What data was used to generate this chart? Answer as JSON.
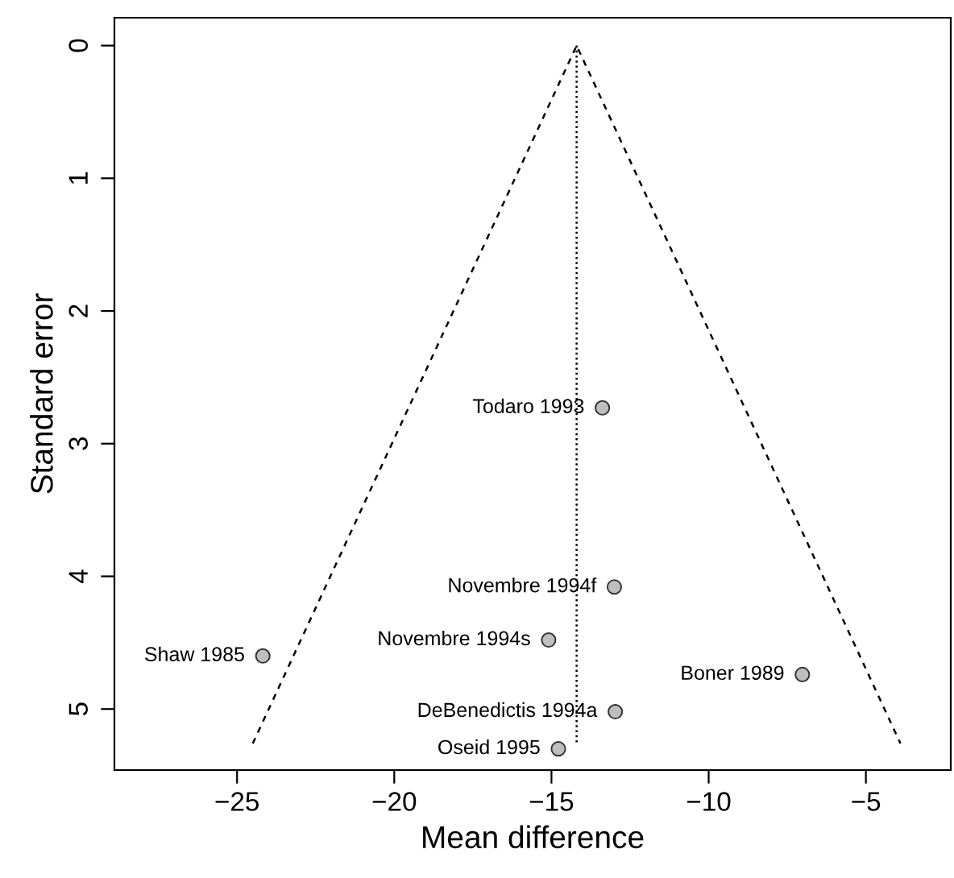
{
  "chart_data": {
    "type": "scatter",
    "xlabel": "Mean difference",
    "ylabel": "Standard error",
    "xlim": [
      -28.9,
      -2.3
    ],
    "xticks": [
      {
        "value": -25,
        "label": "−25"
      },
      {
        "value": -20,
        "label": "−20"
      },
      {
        "value": -15,
        "label": "−15"
      },
      {
        "value": -10,
        "label": "−10"
      },
      {
        "value": -5,
        "label": "−5"
      }
    ],
    "ylim": [
      5.46,
      -0.21
    ],
    "yticks": [
      0,
      1,
      2,
      3,
      4,
      5
    ],
    "grid": false,
    "series": [
      {
        "color": "#bebebe",
        "marker": "circle",
        "x": [
          -13.38,
          -13.0,
          -15.09,
          -7.02,
          -12.97,
          -14.78,
          -24.18
        ],
        "values": [
          2.73,
          4.08,
          4.48,
          4.74,
          5.02,
          5.3,
          4.6
        ]
      },
      {
        "type": "line",
        "color": "#000000",
        "marker": "none",
        "line_style": "dashed",
        "x": [
          -24.5,
          -14.2,
          -3.9
        ],
        "values": [
          5.26,
          0,
          5.26
        ]
      },
      {
        "type": "line",
        "color": "#000000",
        "marker": "none",
        "line_style": "dotted",
        "x": [
          -14.2,
          -14.2
        ],
        "values": [
          0,
          5.26
        ]
      }
    ],
    "annotations": [
      {
        "text": "Todaro 1993",
        "x": -13.38,
        "y": 2.73
      },
      {
        "text": "Novembre 1994f",
        "x": -13.0,
        "y": 4.08
      },
      {
        "text": "Novembre 1994s",
        "x": -15.09,
        "y": 4.48
      },
      {
        "text": "Boner 1989",
        "x": -7.02,
        "y": 4.74
      },
      {
        "text": "DeBenedictis 1994a",
        "x": -12.97,
        "y": 5.02
      },
      {
        "text": "Oseid 1995",
        "x": -14.78,
        "y": 5.3
      },
      {
        "text": "Shaw 1985",
        "x": -24.18,
        "y": 4.6
      }
    ]
  }
}
